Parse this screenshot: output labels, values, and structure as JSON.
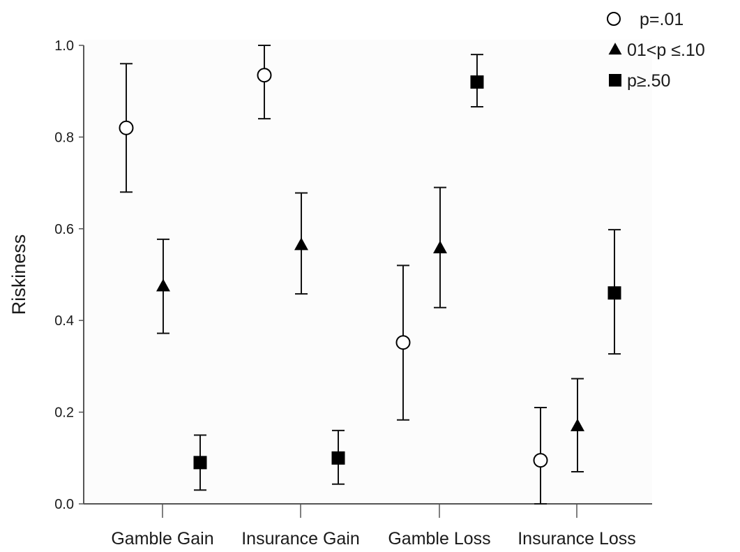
{
  "chart_data": {
    "type": "scatter",
    "title": "",
    "xlabel": "",
    "ylabel": "Riskiness",
    "categories": [
      "Gamble Gain",
      "Insurance Gain",
      "Gamble Loss",
      "Insurance Loss"
    ],
    "ylim": [
      0.0,
      1.0
    ],
    "yticks": [
      "0.0",
      "0.2",
      "0.4",
      "0.6",
      "0.8",
      "1.0"
    ],
    "grid": false,
    "legend_position": "top-right",
    "series": [
      {
        "name": "p=.01",
        "marker": "open-circle",
        "values": [
          0.82,
          0.935,
          0.352,
          0.095
        ],
        "lower": [
          0.68,
          0.84,
          0.183,
          0.0
        ],
        "upper": [
          0.96,
          1.0,
          0.52,
          0.21
        ]
      },
      {
        "name": "01<p ≤.10",
        "marker": "filled-triangle",
        "values": [
          0.475,
          0.565,
          0.558,
          0.17
        ],
        "lower": [
          0.372,
          0.458,
          0.428,
          0.07
        ],
        "upper": [
          0.577,
          0.678,
          0.69,
          0.273
        ]
      },
      {
        "name": "p≥.50",
        "marker": "filled-square",
        "values": [
          0.09,
          0.1,
          0.92,
          0.46
        ],
        "lower": [
          0.03,
          0.043,
          0.866,
          0.327
        ],
        "upper": [
          0.15,
          0.16,
          0.98,
          0.598
        ]
      }
    ]
  },
  "colors": {
    "marker": "#000000",
    "axis": "#555555",
    "plot_background": "#fcfcfc"
  }
}
